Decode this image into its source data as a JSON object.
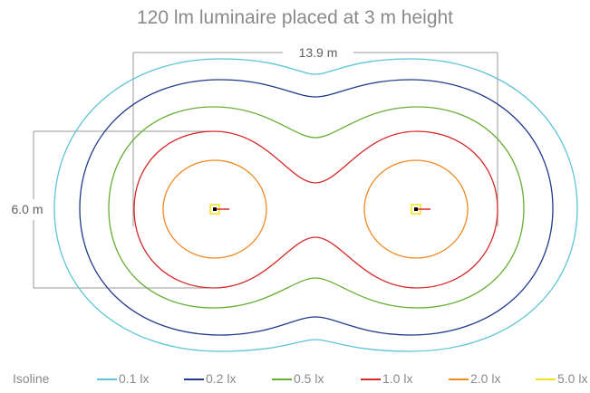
{
  "title": "120 lm luminaire placed at 3 m height",
  "dimensions": {
    "width_label": "13.9 m",
    "height_label": "6.0 m"
  },
  "legend": {
    "title": "Isoline",
    "items": [
      {
        "label": "0.1 lx",
        "color": "#5ec4d6"
      },
      {
        "label": "0.2 lx",
        "color": "#1f3b8a"
      },
      {
        "label": "0.5 lx",
        "color": "#68ae34"
      },
      {
        "label": "1.0 lx",
        "color": "#d42a2a"
      },
      {
        "label": "2.0 lx",
        "color": "#ef8a22"
      },
      {
        "label": "5.0 lx",
        "color": "#f2e01c"
      }
    ]
  },
  "luminaire_marker_colors": {
    "body": "#000000",
    "direction": "#d42a2a"
  }
}
